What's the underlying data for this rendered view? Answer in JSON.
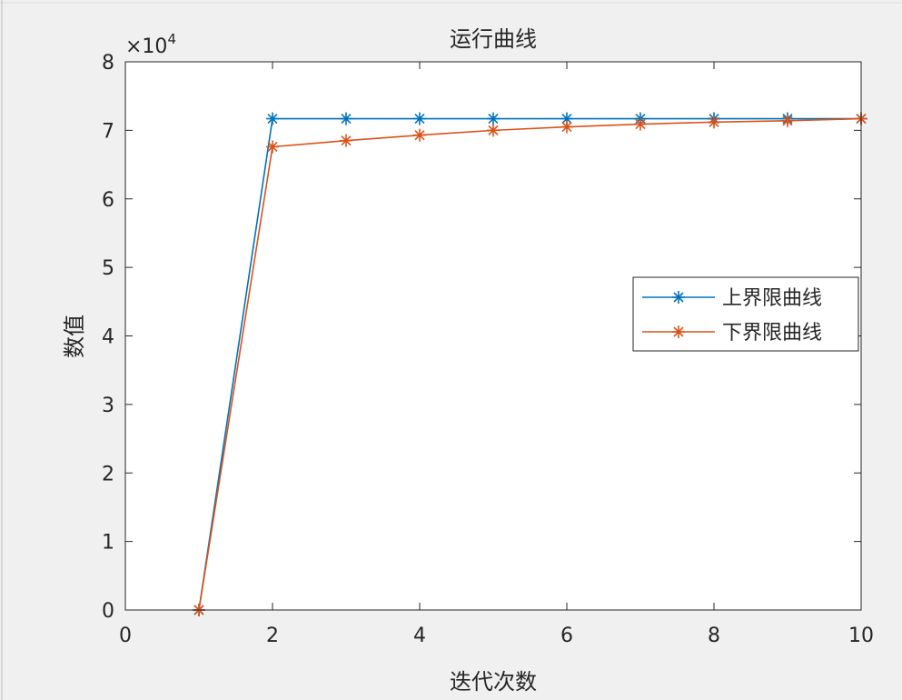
{
  "chart_data": {
    "type": "line",
    "title": "运行曲线",
    "xlabel": "迭代次数",
    "ylabel": "数值",
    "y_exponent_label": "×10",
    "y_exponent_power": "4",
    "xlim": [
      0,
      10
    ],
    "ylim": [
      0,
      80000
    ],
    "x_ticks": [
      0,
      2,
      4,
      6,
      8,
      10
    ],
    "x_tick_labels": [
      "0",
      "2",
      "4",
      "6",
      "8",
      "10"
    ],
    "y_ticks": [
      0,
      10000,
      20000,
      30000,
      40000,
      50000,
      60000,
      70000,
      80000
    ],
    "y_tick_labels": [
      "0",
      "1",
      "2",
      "3",
      "4",
      "5",
      "6",
      "7",
      "8"
    ],
    "grid": false,
    "legend_position": "right",
    "x": [
      1,
      2,
      3,
      4,
      5,
      6,
      7,
      8,
      9,
      10
    ],
    "series": [
      {
        "name": "上界限曲线",
        "color": "#0072bd",
        "marker": "asterisk",
        "values": [
          0,
          71700,
          71700,
          71700,
          71700,
          71700,
          71700,
          71700,
          71700,
          71700
        ]
      },
      {
        "name": "下界限曲线",
        "color": "#d95319",
        "marker": "asterisk",
        "values": [
          0,
          67600,
          68500,
          69300,
          70000,
          70500,
          70900,
          71200,
          71400,
          71700
        ]
      }
    ]
  }
}
